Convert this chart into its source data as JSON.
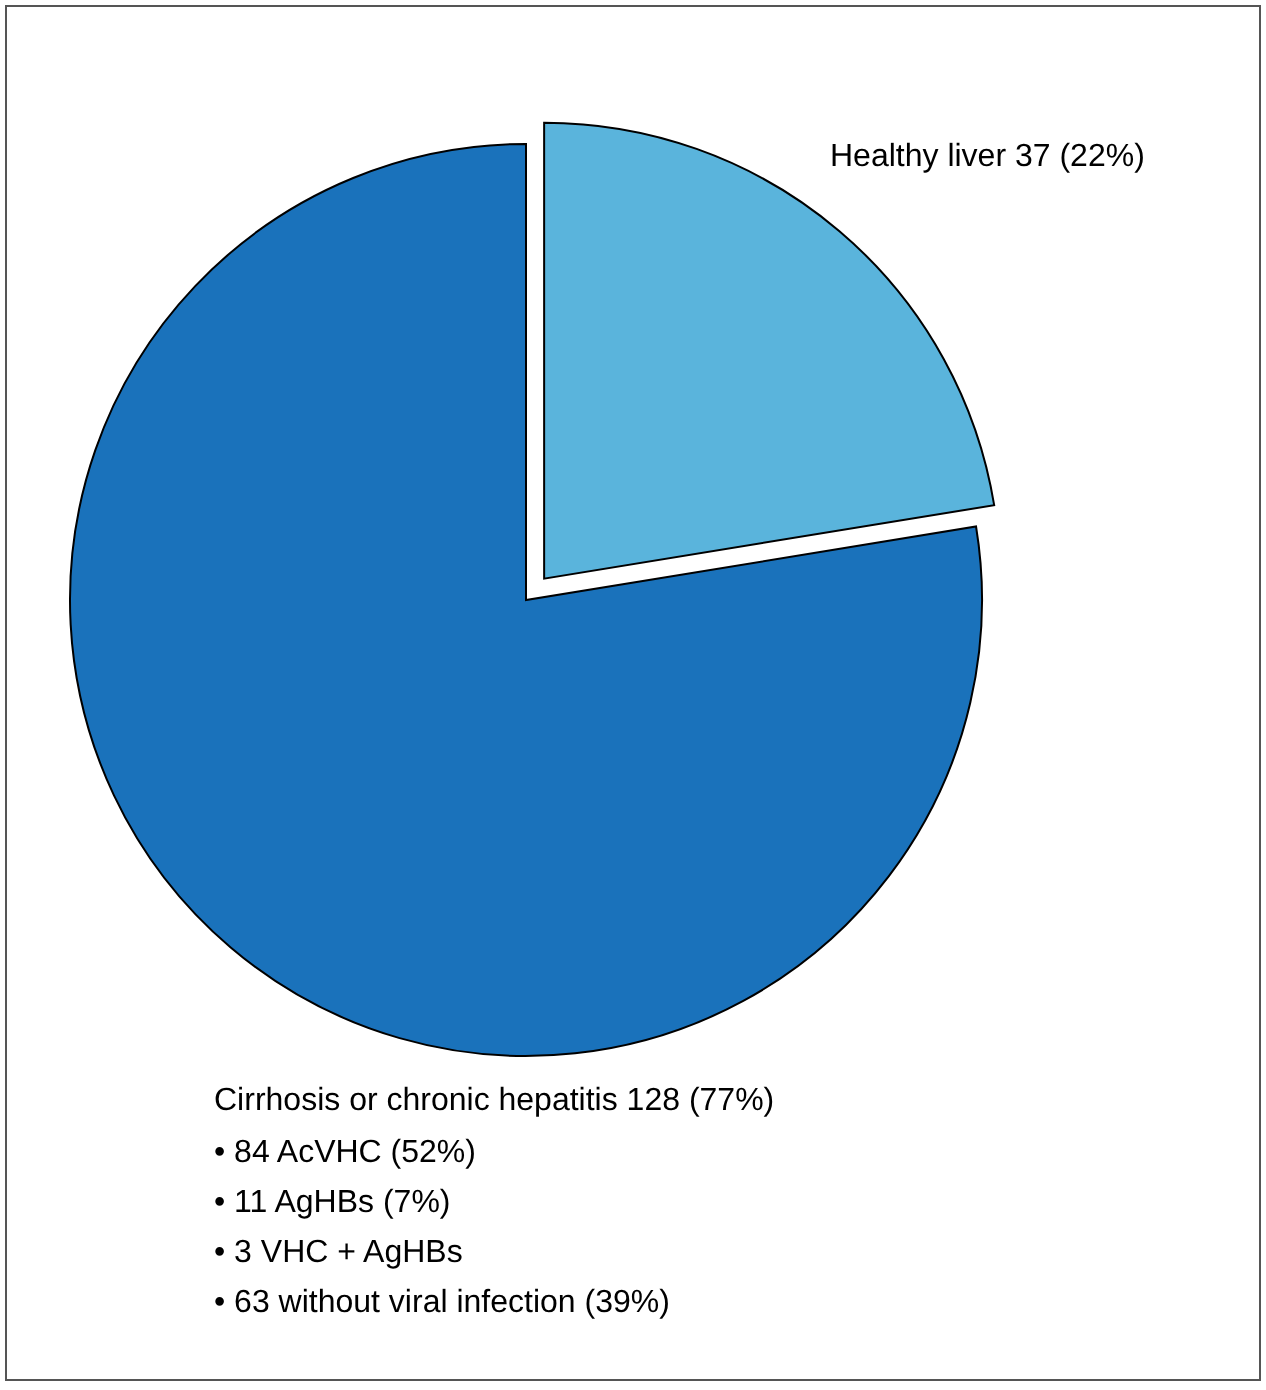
{
  "chart_data": {
    "type": "pie",
    "categories": [
      "Healthy liver",
      "Cirrhosis or chronic hepatitis"
    ],
    "values": [
      37,
      128
    ],
    "value_labels": [
      "37 (22%)",
      "128 (77%)"
    ],
    "colors": [
      "#5ab4dc",
      "#1a72bb"
    ],
    "annotations": [
      "• 84 AcVHC    (52%)",
      "• 11 AgHBs    (7%)",
      "• 3 VHC + AgHBs",
      "• 63 without viral infection (39%)"
    ]
  }
}
